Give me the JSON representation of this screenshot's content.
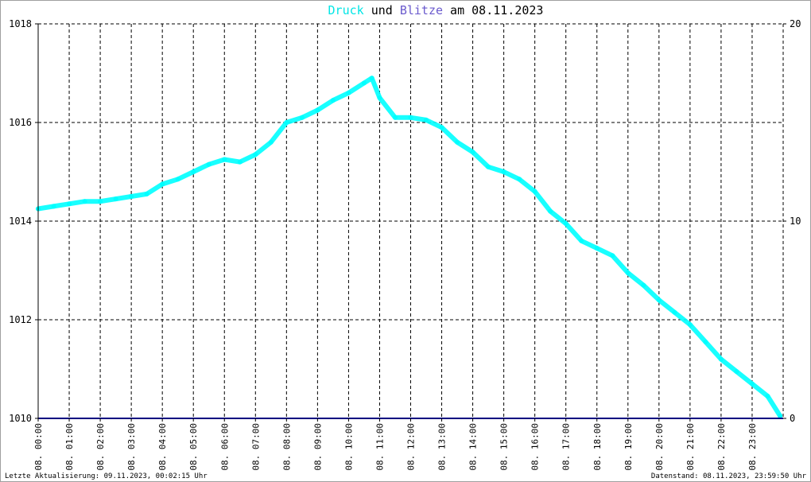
{
  "title": {
    "word1": "Druck",
    "word2": " und ",
    "word3": "Blitze",
    "word4": " am 08.11.2023"
  },
  "colors": {
    "pressure": "#00ffff",
    "lightning": "#000080",
    "title_druck": "#00e6e6",
    "title_blitze": "#6a5acd",
    "grid": "#000000",
    "frame": "#a0a0a0"
  },
  "footer": {
    "left": "Letzte Aktualisierung: 09.11.2023, 00:02:15 Uhr",
    "right": "Datenstand: 08.11.2023, 23:59:50 Uhr"
  },
  "chart_data": {
    "type": "line",
    "title": "Druck und Blitze am 08.11.2023",
    "xlabel": "",
    "ylabel": "",
    "x_unit": "hours",
    "xlim": [
      0,
      24
    ],
    "ylim_left": [
      1010,
      1018
    ],
    "ylim_right": [
      0,
      20
    ],
    "yticks_left": [
      "1010",
      "1012",
      "1014",
      "1016",
      "1018"
    ],
    "yticks_right": [
      "0",
      "10",
      "20"
    ],
    "xticks": [
      "08. 00:00",
      "08. 01:00",
      "08. 02:00",
      "08. 03:00",
      "08. 04:00",
      "08. 05:00",
      "08. 06:00",
      "08. 07:00",
      "08. 08:00",
      "08. 09:00",
      "08. 10:00",
      "08. 11:00",
      "08. 12:00",
      "08. 13:00",
      "08. 14:00",
      "08. 15:00",
      "08. 16:00",
      "08. 17:00",
      "08. 18:00",
      "08. 19:00",
      "08. 20:00",
      "08. 21:00",
      "08. 22:00",
      "08. 23:00"
    ],
    "grid": true,
    "series": [
      {
        "name": "Druck",
        "axis": "left",
        "x": [
          0,
          0.5,
          1,
          1.5,
          2,
          2.5,
          3,
          3.5,
          4,
          4.5,
          5,
          5.5,
          6,
          6.5,
          7,
          7.5,
          8,
          8.5,
          9,
          9.5,
          10,
          10.5,
          10.75,
          11,
          11.5,
          12,
          12.5,
          13,
          13.5,
          14,
          14.5,
          15,
          15.5,
          16,
          16.5,
          17,
          17.5,
          18,
          18.5,
          19,
          19.5,
          20,
          20.5,
          21,
          21.5,
          22,
          22.5,
          23,
          23.5,
          23.9
        ],
        "values": [
          1014.25,
          1014.3,
          1014.35,
          1014.4,
          1014.4,
          1014.45,
          1014.5,
          1014.55,
          1014.75,
          1014.85,
          1015.0,
          1015.15,
          1015.25,
          1015.2,
          1015.35,
          1015.6,
          1016.0,
          1016.1,
          1016.25,
          1016.45,
          1016.6,
          1016.8,
          1016.9,
          1016.5,
          1016.1,
          1016.1,
          1016.05,
          1015.9,
          1015.6,
          1015.4,
          1015.1,
          1015.0,
          1014.85,
          1014.6,
          1014.2,
          1013.95,
          1013.6,
          1013.45,
          1013.3,
          1012.95,
          1012.7,
          1012.4,
          1012.15,
          1011.9,
          1011.55,
          1011.2,
          1010.95,
          1010.7,
          1010.45,
          1010.05
        ]
      },
      {
        "name": "Blitze",
        "axis": "right",
        "x": [
          0,
          24
        ],
        "values": [
          0,
          0
        ]
      }
    ]
  }
}
